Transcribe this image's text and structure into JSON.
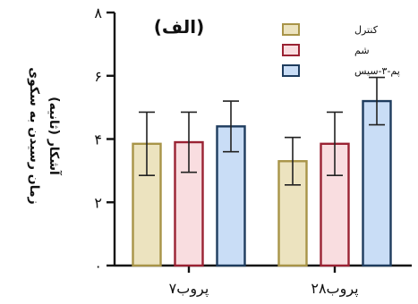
{
  "chart_data": {
    "type": "bar",
    "panel_label": "(الف)",
    "ylabel": [
      "زمان رسیدن به سکوی",
      "آشکار (ثانیه)"
    ],
    "ylim": [
      0,
      8
    ],
    "yticks": [
      0,
      2,
      4,
      6,
      8
    ],
    "ytick_labels": [
      "۰",
      "۲",
      "۴",
      "۶",
      "۸"
    ],
    "categories": [
      "پروب۷",
      "پروب۲۸"
    ],
    "series": [
      {
        "name": "کنترل",
        "values": [
          3.85,
          3.3
        ],
        "errors": [
          1.0,
          0.75
        ],
        "fill": "#ece3bf",
        "stroke": "#a89448"
      },
      {
        "name": "شم",
        "values": [
          3.9,
          3.85
        ],
        "errors": [
          0.95,
          1.0
        ],
        "fill": "#f9dde0",
        "stroke": "#9a2233"
      },
      {
        "name": "پم-۳-سیس",
        "values": [
          4.4,
          5.2
        ],
        "errors": [
          0.8,
          0.75
        ],
        "fill": "#c9ddf6",
        "stroke": "#1e3c5e"
      }
    ],
    "legend_position": "top-right",
    "grid": false
  }
}
